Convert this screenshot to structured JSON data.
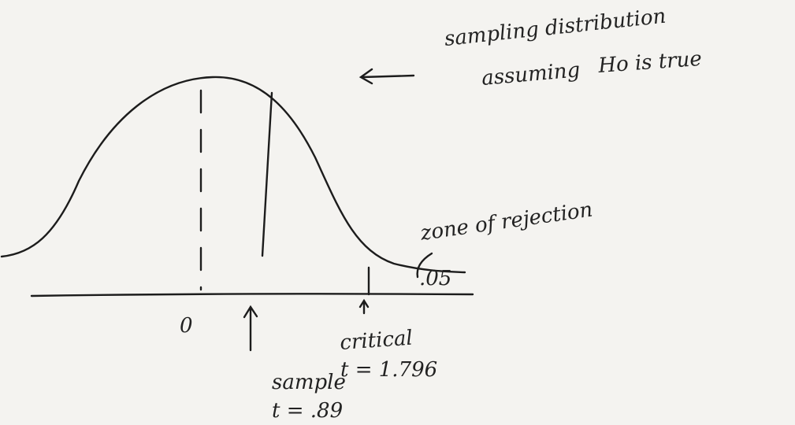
{
  "title": {
    "line1": "sampling distribution",
    "line2": "assuming",
    "line3": "Ho is true"
  },
  "labels": {
    "zero": "0",
    "zone": "zone of rejection",
    "alpha": ".05",
    "critical": {
      "name": "critical",
      "value": "t = 1.796"
    },
    "sample": {
      "name": "sample",
      "value": "t = .89"
    }
  }
}
